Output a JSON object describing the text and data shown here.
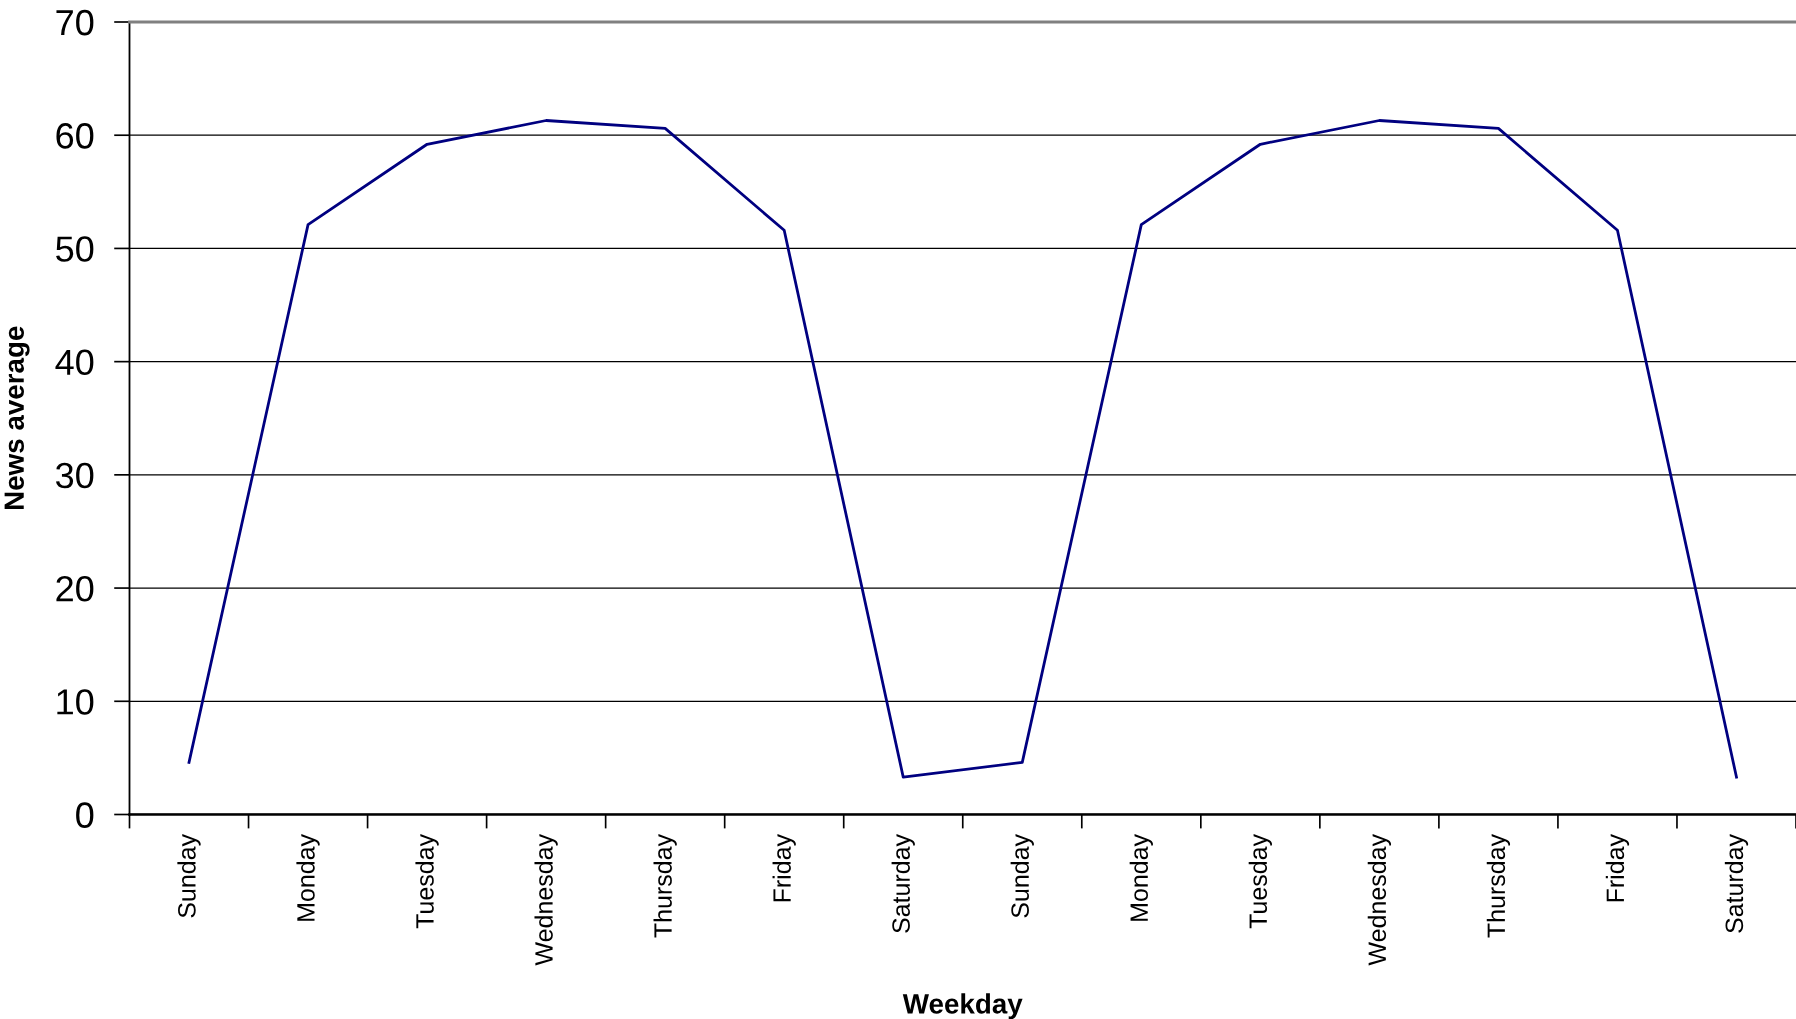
{
  "chart_data": {
    "type": "line",
    "xlabel": "Weekday",
    "ylabel": "News average",
    "categories": [
      "Sunday",
      "Monday",
      "Tuesday",
      "Wednesday",
      "Thursday",
      "Friday",
      "Saturday",
      "Sunday",
      "Monday",
      "Tuesday",
      "Wednesday",
      "Thursday",
      "Friday",
      "Saturday"
    ],
    "series": [
      {
        "color": "#000080",
        "values": [
          4.6,
          52.1,
          59.2,
          61.3,
          60.6,
          51.6,
          3.3,
          4.6,
          52.1,
          59.2,
          61.3,
          60.6,
          51.6,
          3.3
        ]
      }
    ],
    "ylim": [
      0,
      70
    ],
    "yticks": [
      0,
      10,
      20,
      30,
      40,
      50,
      60,
      70
    ],
    "grid": "y",
    "line_style": "solid"
  }
}
